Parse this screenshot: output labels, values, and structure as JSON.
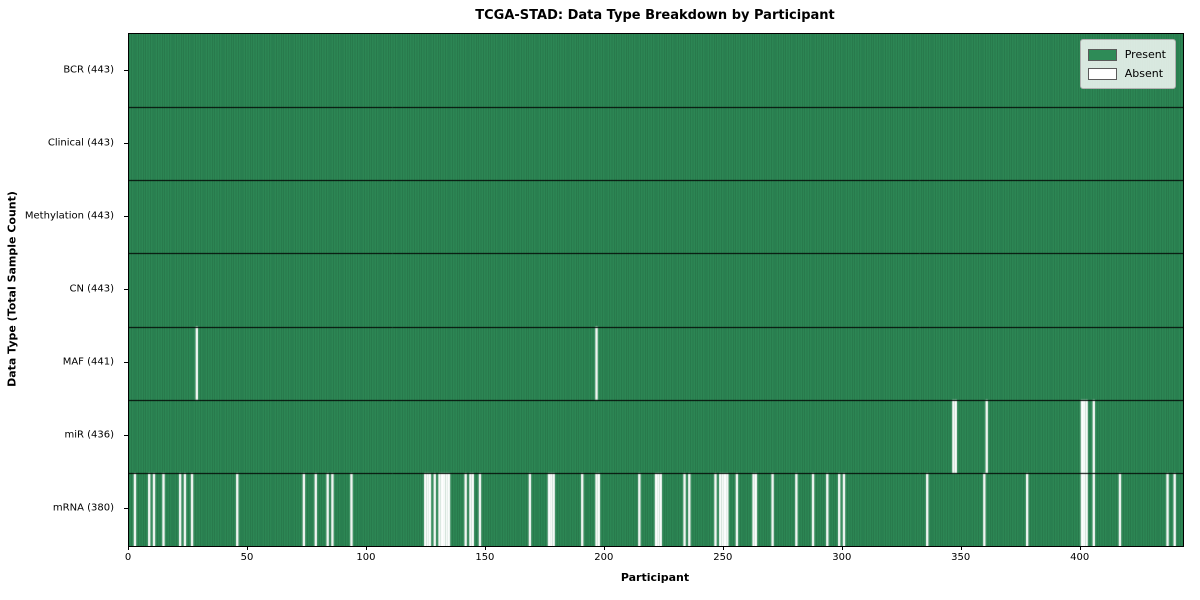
{
  "title": "TCGA-STAD: Data Type Breakdown by Participant",
  "chart_data": {
    "type": "heatmap",
    "title": "TCGA-STAD: Data Type Breakdown by Participant",
    "xlabel": "Participant",
    "ylabel": "Data Type (Total Sample Count)",
    "n_participants": 443,
    "x_ticks": [
      0,
      50,
      100,
      150,
      200,
      250,
      300,
      350,
      400
    ],
    "grid": false,
    "legend_position": "upper right",
    "legend": [
      {
        "label": "Present",
        "color": "#2e8b57"
      },
      {
        "label": "Absent",
        "color": "#ffffff"
      }
    ],
    "colors": {
      "present": "#2e8b57",
      "absent": "#ffffff",
      "cell_edge": "#123d26",
      "row_separator": "#000000",
      "frame": "#000000"
    },
    "rows": [
      {
        "label": "BCR (443)",
        "data_type": "BCR",
        "count": 443,
        "absent_participants": []
      },
      {
        "label": "Clinical (443)",
        "data_type": "Clinical",
        "count": 443,
        "absent_participants": []
      },
      {
        "label": "Methylation (443)",
        "data_type": "Methylation",
        "count": 443,
        "absent_participants": []
      },
      {
        "label": "CN (443)",
        "data_type": "CN",
        "count": 443,
        "absent_participants": []
      },
      {
        "label": "MAF (441)",
        "data_type": "MAF",
        "count": 441,
        "absent_participants": [
          28,
          196
        ]
      },
      {
        "label": "miR (436)",
        "data_type": "miR",
        "count": 436,
        "absent_participants": [
          346,
          347,
          360,
          400,
          401,
          402,
          405
        ]
      },
      {
        "label": "mRNA (380)",
        "data_type": "mRNA",
        "count": 380,
        "absent_participants": [
          2,
          8,
          10,
          14,
          21,
          23,
          26,
          45,
          73,
          78,
          83,
          85,
          93,
          124,
          125,
          126,
          128,
          130,
          131,
          132,
          133,
          134,
          141,
          143,
          144,
          147,
          168,
          176,
          177,
          178,
          190,
          196,
          197,
          214,
          221,
          222,
          223,
          233,
          235,
          246,
          248,
          249,
          250,
          251,
          255,
          262,
          263,
          270,
          280,
          287,
          293,
          298,
          300,
          335,
          359,
          377,
          400,
          401,
          402,
          405,
          416,
          436,
          439
        ]
      }
    ]
  }
}
